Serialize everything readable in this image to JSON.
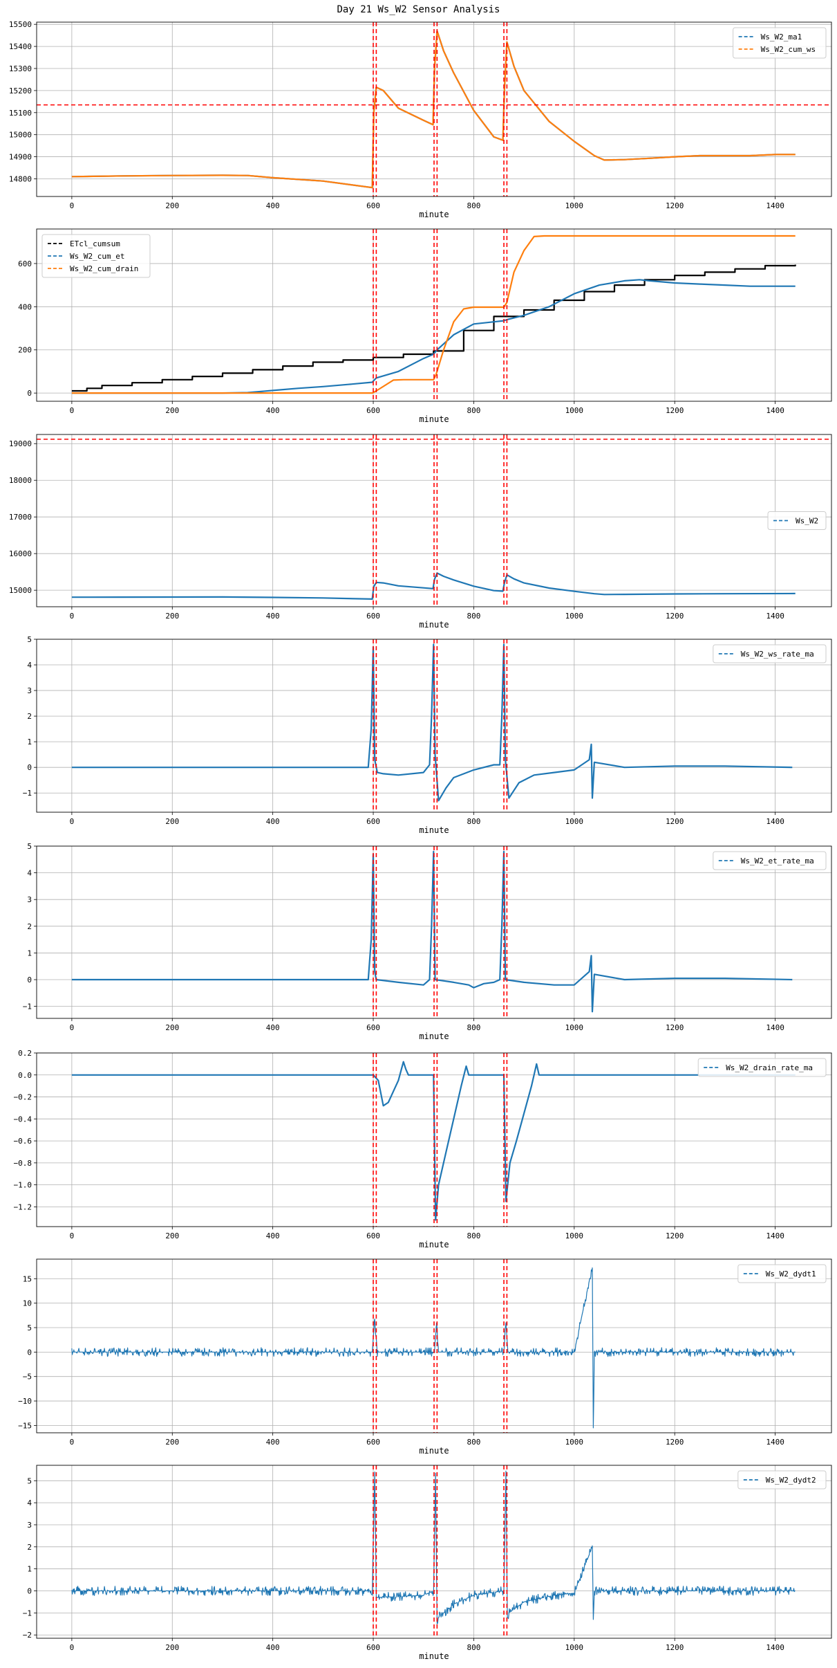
{
  "title": "Day 21 Ws_W2 Sensor Analysis",
  "colors": {
    "blue": "#1f77b4",
    "orange": "#ff7f0e",
    "black": "#000000",
    "red": "#ff0000",
    "grid": "#b0b0b0"
  },
  "event_minutes": [
    600,
    606,
    721,
    727,
    860,
    866
  ],
  "chart_data": [
    {
      "type": "line",
      "title": "",
      "xlabel": "minute",
      "xlim": [
        -70,
        1512
      ],
      "xticks": [
        0,
        200,
        400,
        600,
        800,
        1000,
        1200,
        1400
      ],
      "ylim": [
        14720,
        15510
      ],
      "yticks": [
        14800,
        14900,
        15000,
        15100,
        15200,
        15300,
        15400,
        15500
      ],
      "legend": "top-right",
      "threshold_y": 15135,
      "series": [
        {
          "name": "Ws_W2_ma1",
          "color": "#1f77b4",
          "x": [
            0,
            100,
            200,
            300,
            350,
            400,
            500,
            598,
            601,
            606,
            620,
            650,
            700,
            719,
            722,
            727,
            740,
            760,
            800,
            840,
            858,
            861,
            866,
            880,
            900,
            950,
            1000,
            1040,
            1060,
            1100,
            1150,
            1200,
            1250,
            1300,
            1350,
            1400,
            1440
          ],
          "y": [
            14810,
            14813,
            14815,
            14816,
            14815,
            14805,
            14790,
            14760,
            15100,
            15215,
            15200,
            15120,
            15065,
            15045,
            15300,
            15470,
            15380,
            15280,
            15110,
            14990,
            14975,
            15200,
            15420,
            15310,
            15200,
            15060,
            14970,
            14905,
            14885,
            14887,
            14893,
            14900,
            14905,
            14905,
            14905,
            14910,
            14910
          ]
        },
        {
          "name": "Ws_W2_cum_ws",
          "color": "#ff7f0e",
          "x": [
            0,
            100,
            200,
            300,
            350,
            400,
            500,
            598,
            601,
            606,
            620,
            650,
            700,
            719,
            722,
            727,
            740,
            760,
            800,
            840,
            858,
            861,
            866,
            880,
            900,
            950,
            1000,
            1040,
            1060,
            1100,
            1150,
            1200,
            1250,
            1300,
            1350,
            1400,
            1440
          ],
          "y": [
            14810,
            14813,
            14815,
            14816,
            14815,
            14805,
            14790,
            14760,
            15100,
            15215,
            15200,
            15120,
            15065,
            15045,
            15300,
            15470,
            15380,
            15280,
            15110,
            14990,
            14975,
            15200,
            15420,
            15310,
            15200,
            15060,
            14970,
            14905,
            14885,
            14887,
            14893,
            14900,
            14905,
            14905,
            14905,
            14910,
            14910
          ]
        }
      ]
    },
    {
      "type": "line",
      "title": "",
      "xlabel": "minute",
      "xlim": [
        -70,
        1512
      ],
      "xticks": [
        0,
        200,
        400,
        600,
        800,
        1000,
        1200,
        1400
      ],
      "ylim": [
        -38,
        760
      ],
      "yticks": [
        0,
        200,
        400,
        600
      ],
      "legend": "top-left",
      "series": [
        {
          "name": "ETcl_cumsum",
          "color": "#000000",
          "step": true,
          "x": [
            0,
            30,
            60,
            120,
            180,
            240,
            300,
            360,
            420,
            480,
            540,
            600,
            660,
            720,
            780,
            840,
            900,
            960,
            1020,
            1080,
            1140,
            1200,
            1260,
            1320,
            1380,
            1440
          ],
          "y": [
            10,
            22,
            35,
            48,
            62,
            77,
            92,
            108,
            125,
            143,
            153,
            165,
            180,
            195,
            290,
            355,
            385,
            430,
            470,
            500,
            525,
            545,
            560,
            575,
            590,
            595
          ]
        },
        {
          "name": "Ws_W2_cum_et",
          "color": "#1f77b4",
          "x": [
            0,
            100,
            200,
            300,
            350,
            400,
            450,
            500,
            550,
            598,
            606,
            650,
            700,
            720,
            727,
            760,
            800,
            840,
            860,
            866,
            900,
            950,
            1000,
            1050,
            1100,
            1130,
            1150,
            1200,
            1250,
            1300,
            1350,
            1400,
            1440
          ],
          "y": [
            0,
            0,
            0,
            0,
            2,
            12,
            22,
            30,
            40,
            50,
            70,
            100,
            160,
            180,
            200,
            270,
            320,
            330,
            335,
            340,
            360,
            400,
            460,
            500,
            520,
            525,
            520,
            510,
            505,
            500,
            495,
            495,
            495
          ]
        },
        {
          "name": "Ws_W2_cum_drain",
          "color": "#ff7f0e",
          "x": [
            0,
            598,
            606,
            640,
            660,
            700,
            720,
            725,
            740,
            760,
            780,
            800,
            860,
            866,
            880,
            900,
            920,
            940,
            1440
          ],
          "y": [
            0,
            0,
            10,
            60,
            62,
            62,
            62,
            85,
            200,
            330,
            390,
            398,
            398,
            420,
            560,
            660,
            725,
            728,
            728
          ]
        }
      ]
    },
    {
      "type": "line",
      "title": "",
      "xlabel": "minute",
      "xlim": [
        -70,
        1512
      ],
      "xticks": [
        0,
        200,
        400,
        600,
        800,
        1000,
        1200,
        1400
      ],
      "ylim": [
        14550,
        19250
      ],
      "yticks": [
        15000,
        16000,
        17000,
        18000,
        19000
      ],
      "legend": "center-right",
      "threshold_y": 19120,
      "series": [
        {
          "name": "Ws_W2",
          "color": "#1f77b4",
          "x": [
            0,
            100,
            200,
            300,
            400,
            500,
            598,
            601,
            606,
            620,
            650,
            700,
            719,
            722,
            727,
            740,
            760,
            800,
            840,
            858,
            861,
            866,
            880,
            900,
            950,
            1000,
            1040,
            1060,
            1100,
            1200,
            1300,
            1440
          ],
          "y": [
            14810,
            14813,
            14815,
            14816,
            14805,
            14790,
            14760,
            15100,
            15215,
            15200,
            15120,
            15065,
            15045,
            15300,
            15470,
            15380,
            15280,
            15110,
            14990,
            14975,
            15200,
            15420,
            15310,
            15200,
            15060,
            14970,
            14905,
            14885,
            14887,
            14900,
            14905,
            14910
          ]
        }
      ]
    },
    {
      "type": "line",
      "title": "",
      "xlabel": "minute",
      "xlim": [
        -70,
        1512
      ],
      "xticks": [
        0,
        200,
        400,
        600,
        800,
        1000,
        1200,
        1400
      ],
      "ylim": [
        -1.75,
        5.0
      ],
      "yticks": [
        -1,
        0,
        1,
        2,
        3,
        4,
        5
      ],
      "legend": "top-right",
      "series": [
        {
          "name": "Ws_W2_ws_rate_ma",
          "color": "#1f77b4",
          "x": [
            0,
            100,
            200,
            300,
            400,
            500,
            590,
            596,
            600,
            603,
            608,
            620,
            650,
            700,
            712,
            716,
            720,
            723,
            730,
            745,
            760,
            800,
            840,
            852,
            856,
            860,
            863,
            870,
            890,
            920,
            960,
            1000,
            1030,
            1034,
            1036,
            1040,
            1100,
            1200,
            1300,
            1434
          ],
          "y": [
            0,
            0,
            0,
            0,
            0,
            0,
            0,
            1.5,
            4.7,
            0.3,
            -0.2,
            -0.25,
            -0.3,
            -0.2,
            0.1,
            2.0,
            4.8,
            0.5,
            -1.3,
            -0.8,
            -0.4,
            -0.1,
            0.1,
            0.1,
            2.0,
            4.8,
            0.3,
            -1.2,
            -0.6,
            -0.3,
            -0.2,
            -0.1,
            0.3,
            0.9,
            -1.2,
            0.2,
            0,
            0.05,
            0.05,
            0
          ]
        }
      ]
    },
    {
      "type": "line",
      "title": "",
      "xlabel": "minute",
      "xlim": [
        -70,
        1512
      ],
      "xticks": [
        0,
        200,
        400,
        600,
        800,
        1000,
        1200,
        1400
      ],
      "ylim": [
        -1.45,
        5.0
      ],
      "yticks": [
        -1,
        0,
        1,
        2,
        3,
        4,
        5
      ],
      "legend": "top-right",
      "series": [
        {
          "name": "Ws_W2_et_rate_ma",
          "color": "#1f77b4",
          "x": [
            0,
            100,
            200,
            300,
            400,
            500,
            590,
            596,
            600,
            603,
            606,
            650,
            700,
            712,
            716,
            720,
            723,
            760,
            790,
            800,
            820,
            840,
            852,
            856,
            860,
            863,
            900,
            960,
            1000,
            1030,
            1034,
            1036,
            1040,
            1100,
            1200,
            1300,
            1434
          ],
          "y": [
            0,
            0,
            0,
            0,
            0,
            0,
            0,
            1.5,
            4.7,
            0.3,
            0,
            -0.1,
            -0.2,
            0,
            2.0,
            4.8,
            0,
            -0.1,
            -0.2,
            -0.3,
            -0.15,
            -0.1,
            0,
            2.0,
            4.8,
            0,
            -0.1,
            -0.2,
            -0.2,
            0.3,
            0.9,
            -1.2,
            0.2,
            0,
            0.05,
            0.05,
            0
          ]
        }
      ]
    },
    {
      "type": "line",
      "title": "",
      "xlabel": "minute",
      "xlim": [
        -70,
        1512
      ],
      "xticks": [
        0,
        200,
        400,
        600,
        800,
        1000,
        1200,
        1400
      ],
      "ylim": [
        -1.38,
        0.2
      ],
      "yticks": [
        -1.2,
        -1.0,
        -0.8,
        -0.6,
        -0.4,
        -0.2,
        0.0,
        0.2
      ],
      "legend": "top-right",
      "series": [
        {
          "name": "Ws_W2_drain_rate_ma",
          "color": "#1f77b4",
          "x": [
            0,
            600,
            610,
            620,
            630,
            640,
            650,
            660,
            665,
            670,
            720,
            724,
            730,
            745,
            760,
            775,
            785,
            790,
            800,
            860,
            864,
            872,
            885,
            900,
            915,
            925,
            930,
            1440
          ],
          "y": [
            0,
            0,
            -0.05,
            -0.28,
            -0.25,
            -0.15,
            -0.05,
            0.12,
            0.05,
            0,
            0,
            -1.32,
            -1.0,
            -0.7,
            -0.4,
            -0.1,
            0.08,
            0,
            0,
            0,
            -1.15,
            -0.8,
            -0.6,
            -0.35,
            -0.1,
            0.1,
            0,
            0
          ]
        }
      ]
    },
    {
      "type": "line",
      "title": "",
      "xlabel": "minute",
      "xlim": [
        -70,
        1512
      ],
      "xticks": [
        0,
        200,
        400,
        600,
        800,
        1000,
        1200,
        1400
      ],
      "ylim": [
        -16.5,
        19
      ],
      "yticks": [
        -15,
        -10,
        -5,
        0,
        5,
        10,
        15
      ],
      "legend": "top-right",
      "series": [
        {
          "name": "Ws_W2_dydt1",
          "color": "#1f77b4",
          "noisy": true,
          "x": [
            0,
            100,
            200,
            300,
            400,
            500,
            598,
            603,
            608,
            700,
            722,
            726,
            730,
            800,
            860,
            864,
            868,
            900,
            1000,
            1036,
            1038,
            1040,
            1100,
            1200,
            1300,
            1440
          ],
          "y": [
            0,
            0,
            0,
            0,
            0,
            0,
            0,
            7,
            0,
            0,
            0,
            6,
            0,
            0,
            0,
            6,
            0,
            0,
            0,
            17.5,
            -15.5,
            0,
            0,
            0,
            0,
            0
          ]
        }
      ]
    },
    {
      "type": "line",
      "title": "",
      "xlabel": "minute",
      "xlim": [
        -70,
        1512
      ],
      "xticks": [
        0,
        200,
        400,
        600,
        800,
        1000,
        1200,
        1400
      ],
      "ylim": [
        -2.15,
        5.7
      ],
      "yticks": [
        -2,
        -1,
        0,
        1,
        2,
        3,
        4,
        5
      ],
      "legend": "top-right",
      "series": [
        {
          "name": "Ws_W2_dydt2",
          "color": "#1f77b4",
          "noisy": true,
          "x": [
            0,
            100,
            200,
            300,
            400,
            500,
            598,
            603,
            606,
            608,
            700,
            720,
            724,
            727,
            730,
            760,
            800,
            860,
            864,
            867,
            870,
            900,
            960,
            1000,
            1036,
            1038,
            1040,
            1100,
            1200,
            1300,
            1440
          ],
          "y": [
            0,
            0,
            0,
            0,
            0,
            0,
            0,
            5.4,
            -0.3,
            -0.3,
            -0.2,
            0,
            5.2,
            -1.5,
            -1.2,
            -0.6,
            -0.2,
            0,
            5.4,
            -1.2,
            -1.0,
            -0.5,
            -0.2,
            -0.1,
            2.0,
            -1.5,
            0,
            0,
            0,
            0,
            0
          ]
        }
      ]
    }
  ]
}
